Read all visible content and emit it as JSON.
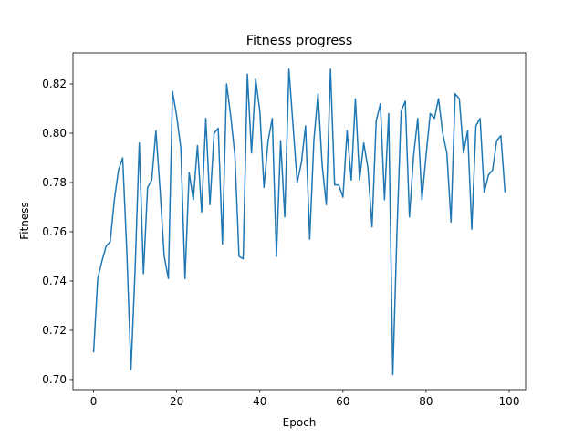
{
  "chart_data": {
    "type": "line",
    "title": "Fitness progress",
    "x_label": "Epoch",
    "y_label": "Fitness",
    "x": [
      0,
      1,
      2,
      3,
      4,
      5,
      6,
      7,
      8,
      9,
      10,
      11,
      12,
      13,
      14,
      15,
      16,
      17,
      18,
      19,
      20,
      21,
      22,
      23,
      24,
      25,
      26,
      27,
      28,
      29,
      30,
      31,
      32,
      33,
      34,
      35,
      36,
      37,
      38,
      39,
      40,
      41,
      42,
      43,
      44,
      45,
      46,
      47,
      48,
      49,
      50,
      51,
      52,
      53,
      54,
      55,
      56,
      57,
      58,
      59,
      60,
      61,
      62,
      63,
      64,
      65,
      66,
      67,
      68,
      69,
      70,
      71,
      72,
      73,
      74,
      75,
      76,
      77,
      78,
      79,
      80,
      81,
      82,
      83,
      84,
      85,
      86,
      87,
      88,
      89,
      90,
      91,
      92,
      93,
      94,
      95,
      96,
      97,
      98,
      99
    ],
    "series": [
      {
        "color": "#1f77b4",
        "values": [
          0.711,
          0.741,
          0.748,
          0.754,
          0.756,
          0.773,
          0.785,
          0.79,
          0.752,
          0.704,
          0.745,
          0.796,
          0.743,
          0.778,
          0.781,
          0.801,
          0.777,
          0.75,
          0.741,
          0.817,
          0.807,
          0.794,
          0.741,
          0.784,
          0.773,
          0.795,
          0.768,
          0.806,
          0.771,
          0.8,
          0.802,
          0.755,
          0.82,
          0.807,
          0.791,
          0.75,
          0.749,
          0.824,
          0.792,
          0.822,
          0.809,
          0.778,
          0.797,
          0.806,
          0.75,
          0.797,
          0.766,
          0.826,
          0.803,
          0.78,
          0.788,
          0.803,
          0.757,
          0.797,
          0.816,
          0.787,
          0.771,
          0.826,
          0.779,
          0.779,
          0.774,
          0.801,
          0.781,
          0.814,
          0.781,
          0.796,
          0.786,
          0.762,
          0.805,
          0.812,
          0.773,
          0.808,
          0.702,
          0.76,
          0.809,
          0.813,
          0.766,
          0.791,
          0.806,
          0.773,
          0.791,
          0.808,
          0.806,
          0.814,
          0.8,
          0.792,
          0.764,
          0.816,
          0.814,
          0.792,
          0.801,
          0.761,
          0.803,
          0.806,
          0.776,
          0.783,
          0.785,
          0.797,
          0.799,
          0.776
        ]
      }
    ],
    "xlim": [
      -4.95,
      103.95
    ],
    "ylim": [
      0.6959,
      0.8326
    ],
    "xticks": [
      0,
      20,
      40,
      60,
      80,
      100
    ],
    "yticks": [
      {
        "value": 0.7,
        "label": "0.70"
      },
      0.72,
      0.74,
      0.76,
      0.78,
      {
        "value": 0.8,
        "label": "0.80"
      },
      0.82
    ]
  }
}
